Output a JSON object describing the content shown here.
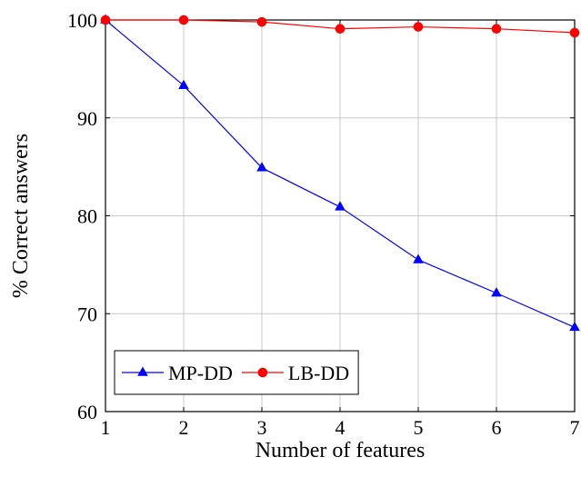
{
  "chart_data": {
    "type": "line",
    "title": "",
    "xlabel": "Number of features",
    "ylabel": "% Correct answers",
    "x": [
      1,
      2,
      3,
      4,
      5,
      6,
      7
    ],
    "xlim": [
      1,
      7
    ],
    "ylim": [
      60,
      100
    ],
    "xticks": [
      1,
      2,
      3,
      4,
      5,
      6,
      7
    ],
    "yticks": [
      60,
      70,
      80,
      90,
      100
    ],
    "grid": true,
    "legend_position": "bottom-left",
    "series": [
      {
        "name": "MP-DD",
        "color": "#0000ff",
        "marker": "triangle",
        "values": [
          100,
          93.3,
          84.9,
          80.9,
          75.5,
          72.1,
          68.6
        ]
      },
      {
        "name": "LB-DD",
        "color": "#ff0000",
        "marker": "circle",
        "values": [
          100,
          100,
          99.8,
          99.1,
          99.3,
          99.1,
          98.7
        ]
      }
    ]
  }
}
